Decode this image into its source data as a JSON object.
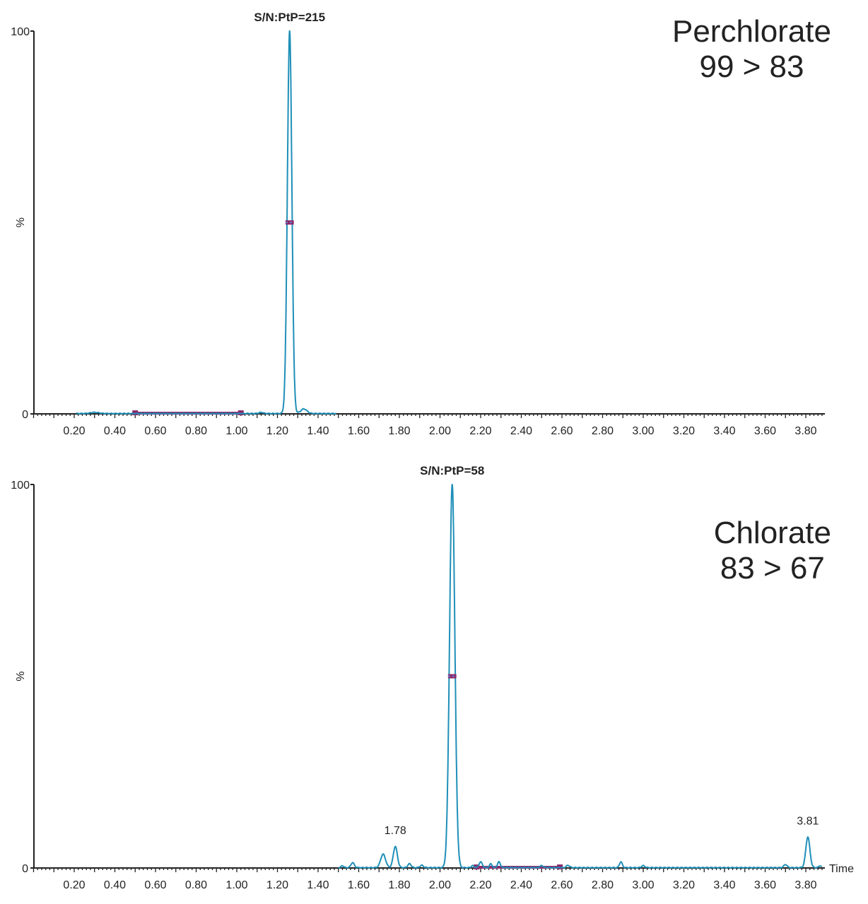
{
  "chart_data": [
    {
      "type": "line",
      "title": "Perchlorate",
      "subtitle": "99 > 83",
      "ylabel": "%",
      "xlabel": "",
      "xlim": [
        0.0,
        3.89
      ],
      "ylim": [
        0,
        100
      ],
      "y_ticks": [
        "0",
        "100"
      ],
      "x_ticks": [
        "0.20",
        "0.40",
        "0.60",
        "0.80",
        "1.00",
        "1.20",
        "1.40",
        "1.60",
        "1.80",
        "2.00",
        "2.20",
        "2.40",
        "2.60",
        "2.80",
        "3.00",
        "3.20",
        "3.40",
        "3.60",
        "3.80"
      ],
      "annotation": "S/N:PtP=215",
      "annotation_rt": 1.26,
      "trace_range": [
        0.21,
        1.49
      ],
      "peaks": [
        {
          "rt": 1.26,
          "height": 100,
          "width": 0.011
        },
        {
          "rt": 1.33,
          "height": 1.2,
          "width": 0.015
        },
        {
          "rt": 0.3,
          "height": 0.3,
          "width": 0.02
        },
        {
          "rt": 1.12,
          "height": 0.3,
          "width": 0.01
        }
      ],
      "noise_region": [
        0.5,
        1.02
      ],
      "half_height_marker": [
        1.25,
        1.27
      ],
      "grid": false,
      "line_color": "#1f8fb8",
      "marker_color": "#8b2a6b"
    },
    {
      "type": "line",
      "title": "Chlorate",
      "subtitle": "83 > 67",
      "ylabel": "%",
      "xlabel": "Time",
      "xlim": [
        0.0,
        3.89
      ],
      "ylim": [
        0,
        100
      ],
      "y_ticks": [
        "0",
        "100"
      ],
      "x_ticks": [
        "0.20",
        "0.40",
        "0.60",
        "0.80",
        "1.00",
        "1.20",
        "1.40",
        "1.60",
        "1.80",
        "2.00",
        "2.20",
        "2.40",
        "2.60",
        "2.80",
        "3.00",
        "3.20",
        "3.40",
        "3.60",
        "3.80"
      ],
      "annotation": "S/N:PtP=58",
      "annotation_rt": 2.06,
      "peak_labels": [
        {
          "rt": 1.78,
          "height": 5.5,
          "label": "1.78"
        },
        {
          "rt": 3.81,
          "height": 8,
          "label": "3.81"
        }
      ],
      "trace_range": [
        1.5,
        3.88
      ],
      "peaks": [
        {
          "rt": 1.52,
          "height": 0.5,
          "width": 0.006
        },
        {
          "rt": 1.57,
          "height": 1.3,
          "width": 0.008
        },
        {
          "rt": 1.72,
          "height": 3.5,
          "width": 0.012
        },
        {
          "rt": 1.78,
          "height": 5.5,
          "width": 0.01
        },
        {
          "rt": 1.85,
          "height": 1.0,
          "width": 0.008
        },
        {
          "rt": 1.91,
          "height": 0.6,
          "width": 0.008
        },
        {
          "rt": 2.06,
          "height": 100,
          "width": 0.013
        },
        {
          "rt": 2.16,
          "height": 0.5,
          "width": 0.006
        },
        {
          "rt": 2.2,
          "height": 1.5,
          "width": 0.008
        },
        {
          "rt": 2.25,
          "height": 1.0,
          "width": 0.006
        },
        {
          "rt": 2.29,
          "height": 1.5,
          "width": 0.007
        },
        {
          "rt": 2.5,
          "height": 0.5,
          "width": 0.008
        },
        {
          "rt": 2.63,
          "height": 0.6,
          "width": 0.008
        },
        {
          "rt": 2.89,
          "height": 1.5,
          "width": 0.007
        },
        {
          "rt": 3.0,
          "height": 0.5,
          "width": 0.008
        },
        {
          "rt": 3.7,
          "height": 0.8,
          "width": 0.008
        },
        {
          "rt": 3.81,
          "height": 8,
          "width": 0.01
        },
        {
          "rt": 3.87,
          "height": 0.5,
          "width": 0.006
        }
      ],
      "noise_region": [
        2.18,
        2.59
      ],
      "half_height_marker": [
        2.05,
        2.07
      ],
      "grid": false,
      "line_color": "#1f8fb8",
      "marker_color": "#8b2a6b"
    }
  ]
}
